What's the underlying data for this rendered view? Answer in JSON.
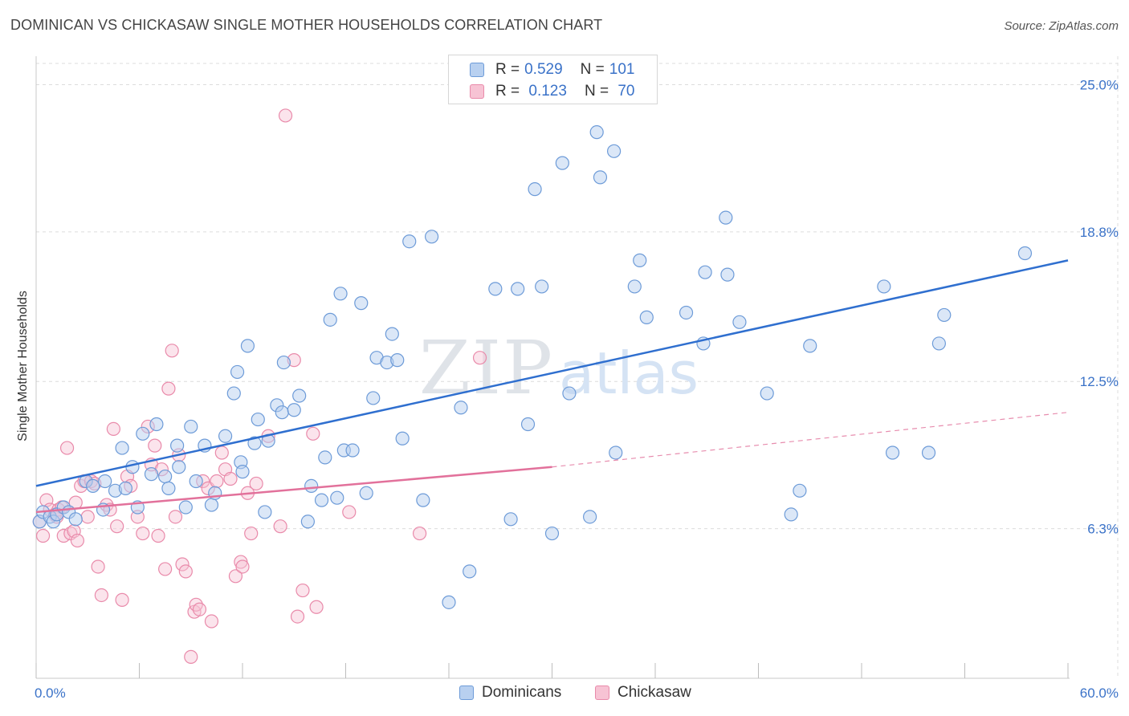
{
  "title": "DOMINICAN VS CHICKASAW SINGLE MOTHER HOUSEHOLDS CORRELATION CHART",
  "source": "Source: ZipAtlas.com",
  "watermark": {
    "left": "ZIP",
    "right": "atlas"
  },
  "legend": {
    "rows": [
      {
        "r_label": "R =",
        "r_value": "0.529",
        "n_label": "N =",
        "n_value": "101"
      },
      {
        "r_label": "R =",
        "r_value": " 0.123",
        "n_label": "N =",
        "n_value": " 70"
      }
    ]
  },
  "colors": {
    "blue_fill": "#b8d0f0",
    "blue_stroke": "#6d9bd8",
    "blue_line": "#2f6fcf",
    "pink_fill": "#f7c3d4",
    "pink_stroke": "#e98aaa",
    "pink_line": "#e2719b",
    "tick_label": "#3a72c8",
    "grid": "#dcdcdc"
  },
  "chart_data": {
    "type": "scatter",
    "title": "DOMINICAN VS CHICKASAW SINGLE MOTHER HOUSEHOLDS CORRELATION CHART",
    "xlabel": "",
    "ylabel": "Single Mother Households",
    "xlim": [
      0,
      60
    ],
    "ylim": [
      0,
      26.2
    ],
    "x_tick_labels": [
      {
        "value": 0,
        "label": "0.0%"
      },
      {
        "value": 60,
        "label": "60.0%"
      }
    ],
    "y_ticks": [
      {
        "value": 6.3,
        "label": "6.3%"
      },
      {
        "value": 12.5,
        "label": "12.5%"
      },
      {
        "value": 18.8,
        "label": "18.8%"
      },
      {
        "value": 25.0,
        "label": "25.0%"
      }
    ],
    "x_minor_ticks": [
      0,
      6,
      12,
      18,
      24,
      30,
      36,
      42,
      48,
      54,
      60
    ],
    "grid": true,
    "legend_position": "bottom",
    "series": [
      {
        "name": "Dominicans",
        "r": 0.529,
        "n": 101,
        "trend": {
          "x": [
            0,
            60
          ],
          "y": [
            8.1,
            17.6
          ],
          "extrapolated_to": null
        },
        "points": [
          [
            0.2,
            6.6
          ],
          [
            0.4,
            7.0
          ],
          [
            0.8,
            6.8
          ],
          [
            1.0,
            6.6
          ],
          [
            1.2,
            6.9
          ],
          [
            1.6,
            7.2
          ],
          [
            1.9,
            7.0
          ],
          [
            2.3,
            6.7
          ],
          [
            2.9,
            8.3
          ],
          [
            3.3,
            8.1
          ],
          [
            3.9,
            7.1
          ],
          [
            4.0,
            8.3
          ],
          [
            4.6,
            7.9
          ],
          [
            5.0,
            9.7
          ],
          [
            5.2,
            8.0
          ],
          [
            5.6,
            8.9
          ],
          [
            5.9,
            7.2
          ],
          [
            6.2,
            10.3
          ],
          [
            6.7,
            8.6
          ],
          [
            7.0,
            10.7
          ],
          [
            7.5,
            8.5
          ],
          [
            7.7,
            8.0
          ],
          [
            8.2,
            9.8
          ],
          [
            8.3,
            8.9
          ],
          [
            8.7,
            7.2
          ],
          [
            9.0,
            10.6
          ],
          [
            9.3,
            8.3
          ],
          [
            9.8,
            9.8
          ],
          [
            10.2,
            7.3
          ],
          [
            10.4,
            7.8
          ],
          [
            11.0,
            10.2
          ],
          [
            11.5,
            12.0
          ],
          [
            11.7,
            12.9
          ],
          [
            11.9,
            9.1
          ],
          [
            12.0,
            8.7
          ],
          [
            12.3,
            14.0
          ],
          [
            12.7,
            9.9
          ],
          [
            12.9,
            10.9
          ],
          [
            13.3,
            7.0
          ],
          [
            13.5,
            10.0
          ],
          [
            14.0,
            11.5
          ],
          [
            14.3,
            11.2
          ],
          [
            14.4,
            13.3
          ],
          [
            15.0,
            11.3
          ],
          [
            15.3,
            11.9
          ],
          [
            15.8,
            6.6
          ],
          [
            16.0,
            8.1
          ],
          [
            16.6,
            7.5
          ],
          [
            16.8,
            9.3
          ],
          [
            17.1,
            15.1
          ],
          [
            17.5,
            7.6
          ],
          [
            17.7,
            16.2
          ],
          [
            17.9,
            9.6
          ],
          [
            18.4,
            9.6
          ],
          [
            18.9,
            15.8
          ],
          [
            19.2,
            7.8
          ],
          [
            19.6,
            11.8
          ],
          [
            19.8,
            13.5
          ],
          [
            20.4,
            13.3
          ],
          [
            20.7,
            14.5
          ],
          [
            21.0,
            13.4
          ],
          [
            21.3,
            10.1
          ],
          [
            21.7,
            18.4
          ],
          [
            22.5,
            7.5
          ],
          [
            23.0,
            18.6
          ],
          [
            24.0,
            3.2
          ],
          [
            24.7,
            11.4
          ],
          [
            25.2,
            4.5
          ],
          [
            26.7,
            16.4
          ],
          [
            27.6,
            6.7
          ],
          [
            28.0,
            16.4
          ],
          [
            28.6,
            10.7
          ],
          [
            29.0,
            20.6
          ],
          [
            29.4,
            16.5
          ],
          [
            30.0,
            6.1
          ],
          [
            30.6,
            21.7
          ],
          [
            31.0,
            12.0
          ],
          [
            32.2,
            6.8
          ],
          [
            32.6,
            23.0
          ],
          [
            32.8,
            21.1
          ],
          [
            33.6,
            22.2
          ],
          [
            33.7,
            9.5
          ],
          [
            34.8,
            16.5
          ],
          [
            35.1,
            17.6
          ],
          [
            35.5,
            15.2
          ],
          [
            37.8,
            15.4
          ],
          [
            38.8,
            14.1
          ],
          [
            38.9,
            17.1
          ],
          [
            40.1,
            19.4
          ],
          [
            40.2,
            17.0
          ],
          [
            40.9,
            15.0
          ],
          [
            42.5,
            12.0
          ],
          [
            43.9,
            6.9
          ],
          [
            44.4,
            7.9
          ],
          [
            45.0,
            14.0
          ],
          [
            49.3,
            16.5
          ],
          [
            49.8,
            9.5
          ],
          [
            51.9,
            9.5
          ],
          [
            52.5,
            14.1
          ],
          [
            52.8,
            15.3
          ],
          [
            57.5,
            17.9
          ]
        ]
      },
      {
        "name": "Chickasaw",
        "r": 0.123,
        "n": 70,
        "trend": {
          "x": [
            0,
            30
          ],
          "y": [
            7.0,
            8.9
          ],
          "extrapolated_to": [
            60,
            11.2
          ]
        },
        "points": [
          [
            0.2,
            6.6
          ],
          [
            0.4,
            6.0
          ],
          [
            0.6,
            7.5
          ],
          [
            0.8,
            7.1
          ],
          [
            1.1,
            6.9
          ],
          [
            1.3,
            7.1
          ],
          [
            1.5,
            7.2
          ],
          [
            1.6,
            6.0
          ],
          [
            1.8,
            9.7
          ],
          [
            2.0,
            6.1
          ],
          [
            2.2,
            6.2
          ],
          [
            2.4,
            5.8
          ],
          [
            2.6,
            8.1
          ],
          [
            2.8,
            8.3
          ],
          [
            3.0,
            6.8
          ],
          [
            3.2,
            8.3
          ],
          [
            3.4,
            8.2
          ],
          [
            3.6,
            4.7
          ],
          [
            3.8,
            3.5
          ],
          [
            4.1,
            7.3
          ],
          [
            4.3,
            7.1
          ],
          [
            4.5,
            10.5
          ],
          [
            4.7,
            6.4
          ],
          [
            5.0,
            3.3
          ],
          [
            5.3,
            8.5
          ],
          [
            5.5,
            8.1
          ],
          [
            5.9,
            6.8
          ],
          [
            6.2,
            6.1
          ],
          [
            6.5,
            10.6
          ],
          [
            6.7,
            9.0
          ],
          [
            6.9,
            9.8
          ],
          [
            7.1,
            6.0
          ],
          [
            7.3,
            8.8
          ],
          [
            7.5,
            4.6
          ],
          [
            7.7,
            12.2
          ],
          [
            7.9,
            13.8
          ],
          [
            8.1,
            6.8
          ],
          [
            8.3,
            9.4
          ],
          [
            8.5,
            4.8
          ],
          [
            8.7,
            4.5
          ],
          [
            9.0,
            0.9
          ],
          [
            9.2,
            2.8
          ],
          [
            9.3,
            3.1
          ],
          [
            9.5,
            2.9
          ],
          [
            9.7,
            8.3
          ],
          [
            10.0,
            8.0
          ],
          [
            10.2,
            2.4
          ],
          [
            10.5,
            8.3
          ],
          [
            10.8,
            9.5
          ],
          [
            11.0,
            8.8
          ],
          [
            11.3,
            8.4
          ],
          [
            11.6,
            4.3
          ],
          [
            11.9,
            4.9
          ],
          [
            12.0,
            4.7
          ],
          [
            12.3,
            7.8
          ],
          [
            12.5,
            6.1
          ],
          [
            12.8,
            8.2
          ],
          [
            13.5,
            10.2
          ],
          [
            14.2,
            6.4
          ],
          [
            14.5,
            23.7
          ],
          [
            15.0,
            13.4
          ],
          [
            15.2,
            2.6
          ],
          [
            15.5,
            3.7
          ],
          [
            16.1,
            10.3
          ],
          [
            16.3,
            3.0
          ],
          [
            18.2,
            7.0
          ],
          [
            22.3,
            6.1
          ],
          [
            25.8,
            13.5
          ],
          [
            1.2,
            6.8
          ],
          [
            2.3,
            7.4
          ]
        ]
      }
    ]
  },
  "bottom_legend": [
    {
      "label": "Dominicans"
    },
    {
      "label": "Chickasaw"
    }
  ]
}
